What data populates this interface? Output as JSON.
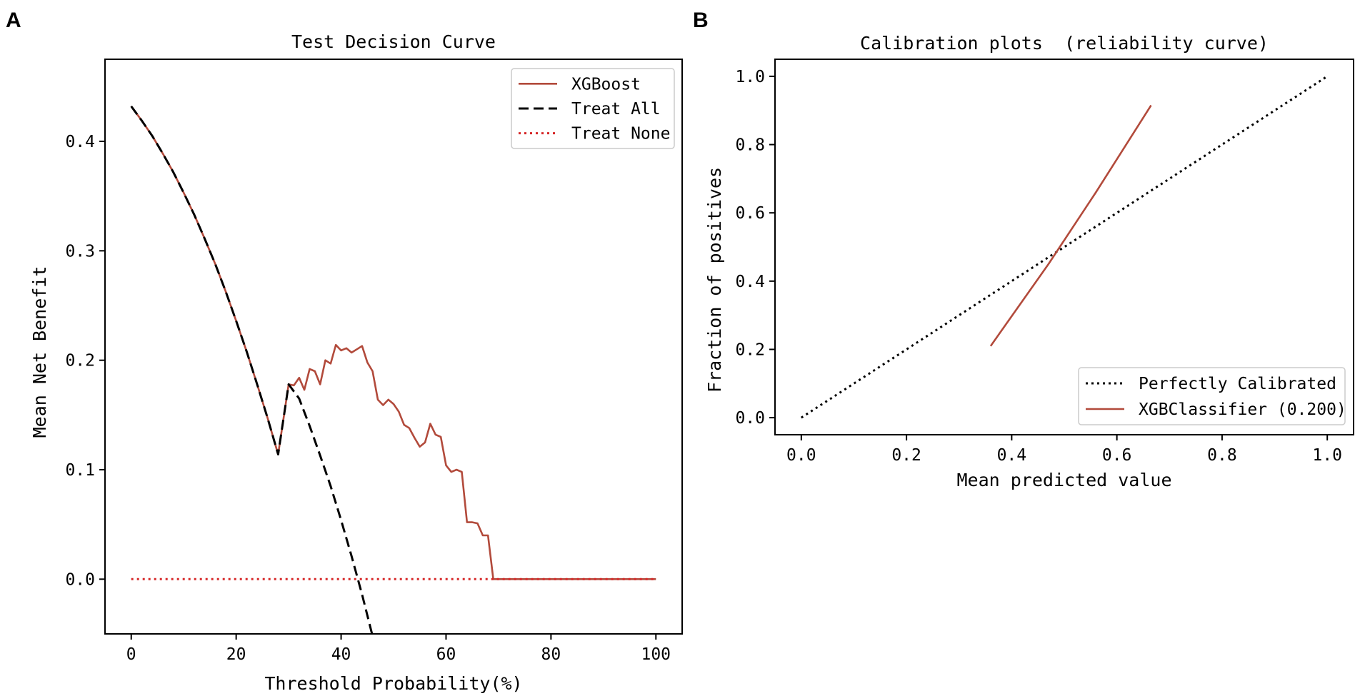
{
  "chart_data": [
    {
      "panel_letter": "A",
      "type": "line",
      "title": "Test Decision Curve",
      "xlabel": "Threshold Probability(%)",
      "ylabel": "Mean Net Benefit",
      "xlim": [
        -5,
        105
      ],
      "ylim": [
        -0.05,
        0.475
      ],
      "xticks": [
        0,
        20,
        40,
        60,
        80,
        100
      ],
      "xtick_labels": [
        "0",
        "20",
        "40",
        "60",
        "80",
        "100"
      ],
      "yticks": [
        0.0,
        0.1,
        0.2,
        0.3,
        0.4
      ],
      "ytick_labels": [
        "0.0",
        "0.1",
        "0.2",
        "0.3",
        "0.4"
      ],
      "legend_position": "top-right",
      "series": [
        {
          "name": "XGBoost",
          "style": "solid",
          "color": "#b24a3b",
          "x": [
            0,
            2,
            4,
            6,
            8,
            10,
            12,
            14,
            16,
            18,
            20,
            22,
            24,
            26,
            28,
            30,
            31,
            32,
            33,
            34,
            35,
            36,
            37,
            38,
            39,
            40,
            41,
            42,
            43,
            44,
            45,
            46,
            47,
            48,
            49,
            50,
            51,
            52,
            53,
            54,
            55,
            56,
            57,
            58,
            59,
            60,
            61,
            62,
            63,
            64,
            65,
            66,
            67,
            68,
            69,
            70,
            75,
            80,
            85,
            90,
            95,
            100
          ],
          "y": [
            0.432,
            0.419,
            0.405,
            0.389,
            0.372,
            0.353,
            0.333,
            0.311,
            0.288,
            0.263,
            0.236,
            0.208,
            0.178,
            0.147,
            0.114,
            0.178,
            0.177,
            0.184,
            0.173,
            0.192,
            0.19,
            0.178,
            0.2,
            0.197,
            0.214,
            0.209,
            0.211,
            0.207,
            0.21,
            0.213,
            0.198,
            0.19,
            0.164,
            0.159,
            0.164,
            0.16,
            0.153,
            0.141,
            0.138,
            0.129,
            0.121,
            0.125,
            0.142,
            0.132,
            0.13,
            0.104,
            0.098,
            0.1,
            0.098,
            0.052,
            0.052,
            0.051,
            0.04,
            0.04,
            0.0,
            0.0,
            0.0,
            0.0,
            0.0,
            0.0,
            0.0,
            0.0
          ]
        },
        {
          "name": "Treat All",
          "style": "dashed",
          "color": "#000000",
          "x": [
            0,
            2,
            4,
            6,
            8,
            10,
            12,
            14,
            16,
            18,
            20,
            22,
            24,
            26,
            28,
            30,
            32,
            34,
            36,
            38,
            40,
            42,
            44,
            46
          ],
          "y": [
            0.432,
            0.419,
            0.405,
            0.389,
            0.372,
            0.353,
            0.333,
            0.311,
            0.288,
            0.263,
            0.236,
            0.208,
            0.178,
            0.147,
            0.114,
            0.178,
            0.165,
            0.14,
            0.113,
            0.085,
            0.054,
            0.021,
            -0.014,
            -0.052
          ]
        },
        {
          "name": "Treat None",
          "style": "dotted",
          "color": "#d62728",
          "x": [
            0,
            100
          ],
          "y": [
            0.0,
            0.0
          ]
        }
      ]
    },
    {
      "panel_letter": "B",
      "type": "line",
      "title": "Calibration plots  (reliability curve)",
      "xlabel": "Mean predicted value",
      "ylabel": "Fraction of positives",
      "xlim": [
        -0.05,
        1.05
      ],
      "ylim": [
        -0.05,
        1.05
      ],
      "xticks": [
        0.0,
        0.2,
        0.4,
        0.6,
        0.8,
        1.0
      ],
      "xtick_labels": [
        "0.0",
        "0.2",
        "0.4",
        "0.6",
        "0.8",
        "1.0"
      ],
      "yticks": [
        0.0,
        0.2,
        0.4,
        0.6,
        0.8,
        1.0
      ],
      "ytick_labels": [
        "0.0",
        "0.2",
        "0.4",
        "0.6",
        "0.8",
        "1.0"
      ],
      "legend_position": "bottom-right",
      "series": [
        {
          "name": "Perfectly Calibrated",
          "style": "dotted",
          "color": "#000000",
          "x": [
            0.0,
            1.0
          ],
          "y": [
            0.0,
            1.0
          ]
        },
        {
          "name": "XGBClassifier (0.200)",
          "style": "solid",
          "color": "#b24a3b",
          "x": [
            0.36,
            0.47,
            0.56,
            0.665
          ],
          "y": [
            0.21,
            0.45,
            0.66,
            0.915
          ]
        }
      ]
    }
  ]
}
